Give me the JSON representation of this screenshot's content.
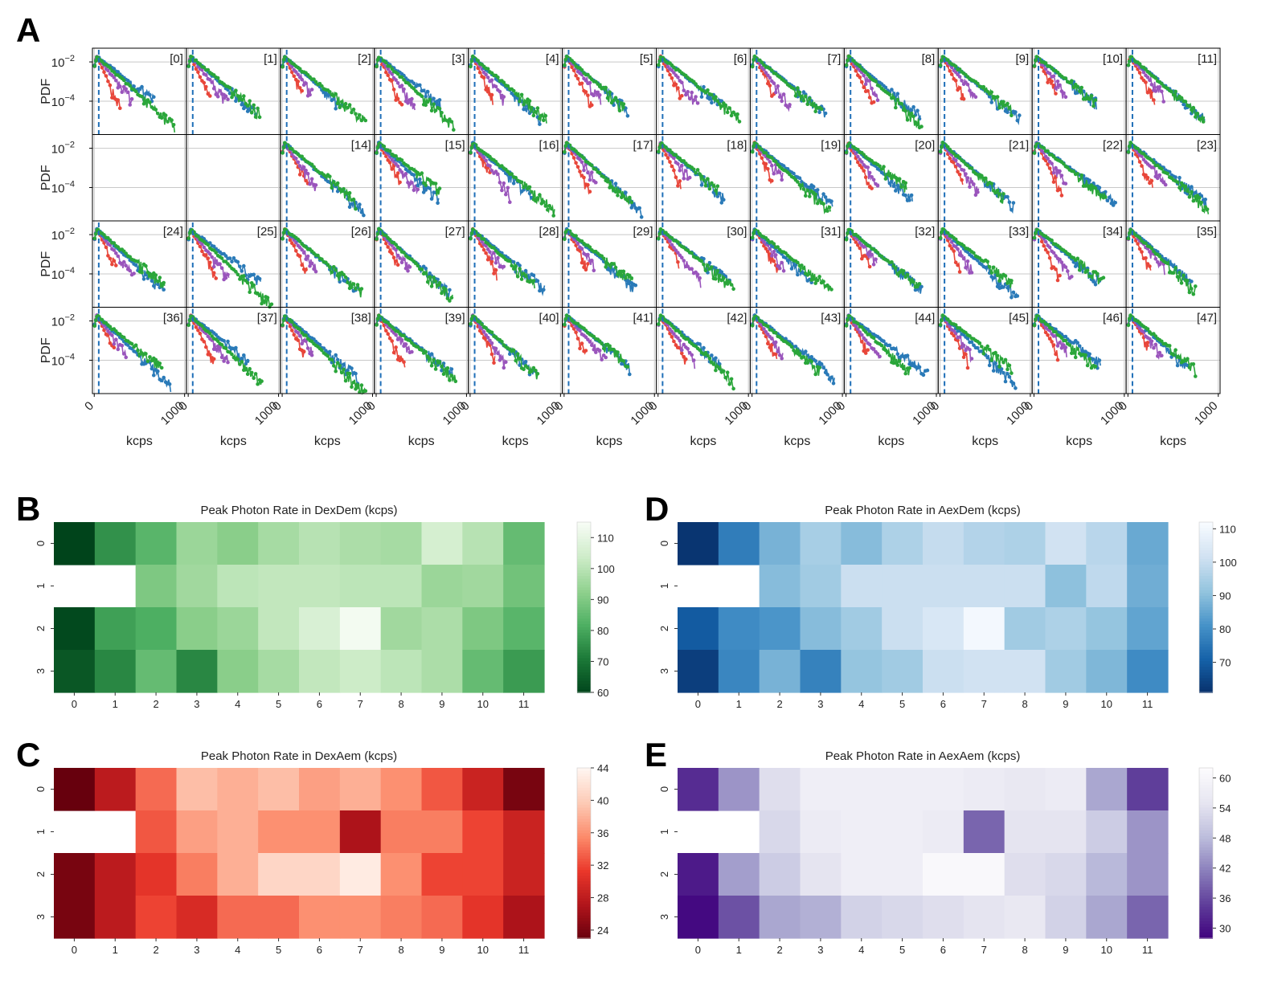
{
  "panels": [
    {
      "id": "A",
      "label": "A"
    },
    {
      "id": "B",
      "label": "B"
    },
    {
      "id": "C",
      "label": "C"
    },
    {
      "id": "D",
      "label": "D"
    },
    {
      "id": "E",
      "label": "E"
    }
  ],
  "chart_data": [
    {
      "type": "line",
      "panel": "A",
      "ylabel": "PDF",
      "xlabel": "kcps",
      "yscale": "log",
      "ylim": [
        2e-06,
        0.05
      ],
      "xlim": [
        -20,
        1020
      ],
      "xticks": [
        "0",
        "1000"
      ],
      "yticks": [
        "10^-2",
        "10^-4"
      ],
      "grid": true,
      "rows": 4,
      "cols": 12,
      "missing_cells": [
        12,
        13
      ],
      "threshold_kcps": 50,
      "series": [
        {
          "name": "",
          "color": "#e8463a",
          "decay_kcps": 48,
          "end_kcps": 280
        },
        {
          "name": "",
          "color": "#9a55bc",
          "decay_kcps": 72,
          "end_kcps": 420
        },
        {
          "name": "",
          "color": "#2a7ab8",
          "decay_kcps": 112,
          "end_kcps": 820
        },
        {
          "name": "",
          "color": "#2aa63a",
          "decay_kcps": 108,
          "end_kcps": 820
        }
      ]
    },
    {
      "type": "heatmap",
      "panel": "B",
      "title": "Peak Photon Rate in DexDem (kcps)",
      "x": [
        0,
        1,
        2,
        3,
        4,
        5,
        6,
        7,
        8,
        9,
        10,
        11
      ],
      "y": [
        0,
        1,
        2,
        3
      ],
      "vmin": 60,
      "vmax": 115,
      "colorbar_ticks": [
        60,
        70,
        80,
        90,
        100,
        110
      ],
      "colormap": "Greens_r",
      "values": [
        [
          60,
          76,
          84,
          95,
          92,
          97,
          100,
          98,
          97,
          106,
          100,
          86
        ],
        [
          null,
          null,
          90,
          96,
          101,
          102,
          102,
          101,
          101,
          95,
          96,
          88
        ],
        [
          61,
          79,
          82,
          92,
          95,
          102,
          107,
          114,
          96,
          98,
          90,
          84
        ],
        [
          64,
          74,
          86,
          74,
          92,
          97,
          102,
          104,
          101,
          98,
          86,
          78
        ]
      ]
    },
    {
      "type": "heatmap",
      "panel": "C",
      "title": "Peak Photon Rate in DexAem (kcps)",
      "x": [
        0,
        1,
        2,
        3,
        4,
        5,
        6,
        7,
        8,
        9,
        10,
        11
      ],
      "y": [
        0,
        1,
        2,
        3
      ],
      "vmin": 23,
      "vmax": 44,
      "colorbar_ticks": [
        24,
        28,
        32,
        36,
        40,
        44
      ],
      "colormap": "Reds_r",
      "values": [
        [
          23,
          28,
          34,
          39,
          38,
          39,
          37,
          38,
          36,
          33,
          29,
          24
        ],
        [
          null,
          null,
          33,
          37,
          38,
          36,
          36,
          27,
          35,
          35,
          32,
          29
        ],
        [
          24,
          28,
          31,
          35,
          38,
          41,
          41,
          43,
          36,
          32,
          32,
          29
        ],
        [
          24,
          28,
          32,
          30,
          34,
          34,
          36,
          36,
          35,
          34,
          31,
          27
        ]
      ]
    },
    {
      "type": "heatmap",
      "panel": "D",
      "title": "Peak Photon Rate in AexDem (kcps)",
      "x": [
        0,
        1,
        2,
        3,
        4,
        5,
        6,
        7,
        8,
        9,
        10,
        11
      ],
      "y": [
        0,
        1,
        2,
        3
      ],
      "vmin": 61,
      "vmax": 112,
      "colorbar_ticks": [
        70,
        80,
        90,
        100,
        110
      ],
      "colormap": "Blues_r",
      "values": [
        [
          62,
          77,
          88,
          95,
          90,
          96,
          100,
          97,
          96,
          102,
          98,
          86
        ],
        [
          null,
          null,
          90,
          94,
          101,
          101,
          101,
          101,
          101,
          91,
          99,
          87
        ],
        [
          70,
          80,
          82,
          90,
          94,
          101,
          104,
          111,
          94,
          96,
          92,
          85
        ],
        [
          64,
          79,
          88,
          78,
          92,
          94,
          101,
          102,
          102,
          94,
          89,
          80
        ]
      ]
    },
    {
      "type": "heatmap",
      "panel": "E",
      "title": "Peak Photon Rate in AexAem (kcps)",
      "x": [
        0,
        1,
        2,
        3,
        4,
        5,
        6,
        7,
        8,
        9,
        10,
        11
      ],
      "y": [
        0,
        1,
        2,
        3
      ],
      "vmin": 28,
      "vmax": 62,
      "colorbar_ticks": [
        30,
        36,
        42,
        48,
        54,
        60
      ],
      "colormap": "Purples_r",
      "values": [
        [
          33,
          44,
          54,
          58,
          58,
          58,
          58,
          57,
          56,
          57,
          46,
          35
        ],
        [
          null,
          null,
          53,
          57,
          58,
          58,
          57,
          39,
          55,
          55,
          51,
          44
        ],
        [
          31,
          45,
          51,
          55,
          58,
          58,
          61,
          61,
          54,
          53,
          48,
          44
        ],
        [
          29,
          37,
          46,
          47,
          52,
          53,
          54,
          55,
          56,
          52,
          46,
          39
        ]
      ]
    }
  ]
}
